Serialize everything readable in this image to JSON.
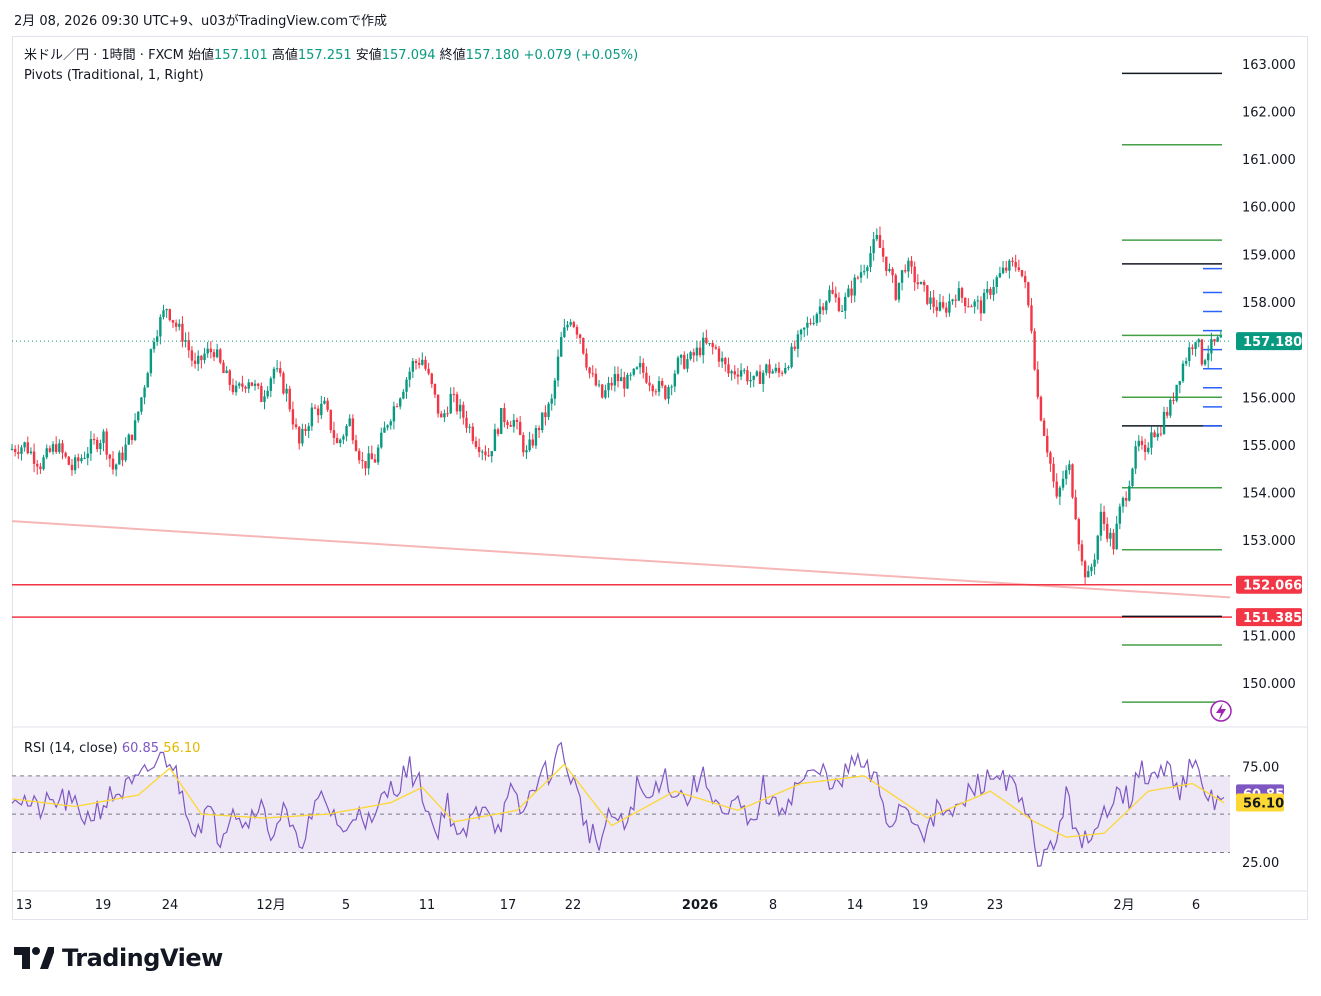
{
  "caption": "2月 08, 2026 09:30 UTC+9、u03がTradingView.comで作成",
  "legend": {
    "symbol": "米ドル／円 · 1時間 · FXCM",
    "open_label": "始値",
    "open": "157.101",
    "high_label": "高値",
    "high": "157.251",
    "low_label": "安値",
    "low": "157.094",
    "close_label": "終値",
    "close": "157.180",
    "change": "+0.079 (+0.05%)",
    "pivots": "Pivots (Traditional, 1, Right)"
  },
  "rsi_legend": {
    "label": "RSI (14, close)",
    "rsi_value": "60.85",
    "ma_value": "56.10"
  },
  "brand": {
    "name": "TradingView"
  },
  "colors": {
    "up": "#089981",
    "down": "#f23645",
    "pivot_green": "#43a047",
    "pivot_black": "#131722",
    "pivot_blue": "#2962ff",
    "hline_red": "#f23645",
    "trend_pink": "#f7b6b6",
    "rsi_line": "#7e57c2",
    "rsi_ma": "#fdd835",
    "rsi_band": "#ede7f6",
    "price_tag": "#089981"
  },
  "chart_data": {
    "type": "candlestick",
    "title": "米ドル／円 · 1時間 · FXCM",
    "y_axis": {
      "ticks": [
        "163.000",
        "162.000",
        "161.000",
        "160.000",
        "159.000",
        "158.000",
        "156.000",
        "155.000",
        "154.000",
        "153.000",
        "151.000",
        "150.000"
      ],
      "ylim": [
        149.1,
        163.5
      ]
    },
    "x_axis": {
      "ticks": [
        "13",
        "19",
        "24",
        "12月",
        "5",
        "11",
        "17",
        "22",
        "2026",
        "8",
        "14",
        "19",
        "23",
        "2月",
        "6"
      ]
    },
    "ohlc_path": [
      [
        0,
        154.9
      ],
      [
        5,
        155.0
      ],
      [
        10,
        154.6
      ],
      [
        15,
        155.0
      ],
      [
        20,
        154.5
      ],
      [
        25,
        154.9
      ],
      [
        30,
        155.2
      ],
      [
        33,
        154.5
      ],
      [
        36,
        154.8
      ],
      [
        40,
        155.4
      ],
      [
        43,
        156.3
      ],
      [
        46,
        157.3
      ],
      [
        50,
        157.9
      ],
      [
        53,
        157.5
      ],
      [
        56,
        157.2
      ],
      [
        59,
        156.6
      ],
      [
        62,
        156.9
      ],
      [
        65,
        157.0
      ],
      [
        68,
        156.5
      ],
      [
        72,
        156.1
      ],
      [
        76,
        156.4
      ],
      [
        80,
        156.0
      ],
      [
        84,
        156.6
      ],
      [
        88,
        156.1
      ],
      [
        92,
        155.0
      ],
      [
        96,
        155.7
      ],
      [
        100,
        155.8
      ],
      [
        104,
        155.0
      ],
      [
        108,
        155.5
      ],
      [
        112,
        154.6
      ],
      [
        116,
        154.7
      ],
      [
        120,
        155.5
      ],
      [
        124,
        156.1
      ],
      [
        128,
        156.7
      ],
      [
        131,
        156.8
      ],
      [
        134,
        156.2
      ],
      [
        137,
        155.5
      ],
      [
        140,
        156.0
      ],
      [
        144,
        155.6
      ],
      [
        148,
        155.1
      ],
      [
        152,
        154.8
      ],
      [
        156,
        155.6
      ],
      [
        160,
        155.5
      ],
      [
        164,
        154.8
      ],
      [
        168,
        155.4
      ],
      [
        172,
        155.9
      ],
      [
        175,
        157.2
      ],
      [
        178,
        157.7
      ],
      [
        181,
        157.3
      ],
      [
        184,
        156.5
      ],
      [
        188,
        156.0
      ],
      [
        192,
        156.4
      ],
      [
        196,
        156.3
      ],
      [
        200,
        156.6
      ],
      [
        204,
        156.3
      ],
      [
        208,
        156.1
      ],
      [
        212,
        156.7
      ],
      [
        216,
        156.8
      ],
      [
        220,
        157.1
      ],
      [
        224,
        157.0
      ],
      [
        228,
        156.5
      ],
      [
        232,
        156.6
      ],
      [
        236,
        156.3
      ],
      [
        240,
        156.6
      ],
      [
        244,
        156.5
      ],
      [
        248,
        156.9
      ],
      [
        252,
        157.4
      ],
      [
        256,
        157.8
      ],
      [
        260,
        158.2
      ],
      [
        264,
        157.9
      ],
      [
        268,
        158.4
      ],
      [
        272,
        158.9
      ],
      [
        275,
        159.3
      ],
      [
        278,
        158.8
      ],
      [
        281,
        158.2
      ],
      [
        284,
        158.8
      ],
      [
        288,
        158.4
      ],
      [
        292,
        158.0
      ],
      [
        296,
        157.8
      ],
      [
        300,
        158.2
      ],
      [
        304,
        158.0
      ],
      [
        308,
        157.9
      ],
      [
        312,
        158.4
      ],
      [
        316,
        158.7
      ],
      [
        320,
        158.8
      ],
      [
        322,
        158.3
      ],
      [
        324,
        157.5
      ],
      [
        326,
        156.0
      ],
      [
        328,
        155.3
      ],
      [
        330,
        154.6
      ],
      [
        332,
        153.8
      ],
      [
        334,
        154.3
      ],
      [
        336,
        154.5
      ],
      [
        338,
        153.6
      ],
      [
        340,
        152.5
      ],
      [
        342,
        152.2
      ],
      [
        344,
        152.7
      ],
      [
        346,
        153.5
      ],
      [
        348,
        153.2
      ],
      [
        350,
        152.9
      ],
      [
        352,
        153.6
      ],
      [
        354,
        154.0
      ],
      [
        356,
        154.6
      ],
      [
        358,
        155.0
      ],
      [
        360,
        154.7
      ],
      [
        362,
        155.4
      ],
      [
        364,
        155.2
      ],
      [
        366,
        155.6
      ],
      [
        368,
        155.8
      ],
      [
        370,
        156.3
      ],
      [
        372,
        156.7
      ],
      [
        374,
        157.0
      ],
      [
        376,
        157.3
      ],
      [
        378,
        156.8
      ],
      [
        380,
        157.0
      ],
      [
        382,
        157.1
      ],
      [
        384,
        157.2
      ]
    ],
    "pivots": {
      "levels": [
        {
          "value": 162.8,
          "color": "black"
        },
        {
          "value": 161.3,
          "color": "green"
        },
        {
          "value": 159.3,
          "color": "green"
        },
        {
          "value": 158.8,
          "color": "black"
        },
        {
          "value": 157.3,
          "color": "green"
        },
        {
          "value": 156.0,
          "color": "green"
        },
        {
          "value": 155.4,
          "color": "black"
        },
        {
          "value": 154.1,
          "color": "green"
        },
        {
          "value": 152.8,
          "color": "green"
        },
        {
          "value": 151.4,
          "color": "black"
        },
        {
          "value": 150.8,
          "color": "green"
        },
        {
          "value": 149.6,
          "color": "green"
        }
      ],
      "blue_levels": [
        158.7,
        158.2,
        157.8,
        157.4,
        157.0,
        156.6,
        156.2,
        155.8,
        155.4
      ]
    },
    "horizontal_lines": [
      {
        "value": 152.066,
        "label": "152.066"
      },
      {
        "value": 151.385,
        "label": "151.385"
      }
    ],
    "trend_line": {
      "from": 153.4,
      "to": 151.8
    },
    "last_price": {
      "value": 157.18,
      "label": "157.180"
    },
    "rsi": {
      "levels": {
        "upper": 70,
        "middle": 50,
        "lower": 30
      },
      "ticks": [
        "75.00",
        "25.00"
      ],
      "ylim": [
        13,
        95
      ],
      "path": [
        [
          0,
          62
        ],
        [
          8,
          52
        ],
        [
          16,
          58
        ],
        [
          24,
          48
        ],
        [
          32,
          60
        ],
        [
          40,
          66
        ],
        [
          46,
          78
        ],
        [
          50,
          80
        ],
        [
          54,
          60
        ],
        [
          58,
          42
        ],
        [
          62,
          52
        ],
        [
          66,
          38
        ],
        [
          70,
          56
        ],
        [
          74,
          44
        ],
        [
          78,
          58
        ],
        [
          82,
          40
        ],
        [
          86,
          52
        ],
        [
          90,
          34
        ],
        [
          94,
          44
        ],
        [
          98,
          58
        ],
        [
          102,
          50
        ],
        [
          106,
          38
        ],
        [
          110,
          56
        ],
        [
          114,
          42
        ],
        [
          118,
          60
        ],
        [
          122,
          66
        ],
        [
          126,
          74
        ],
        [
          130,
          62
        ],
        [
          134,
          40
        ],
        [
          138,
          56
        ],
        [
          142,
          34
        ],
        [
          146,
          48
        ],
        [
          150,
          58
        ],
        [
          154,
          42
        ],
        [
          158,
          60
        ],
        [
          162,
          50
        ],
        [
          166,
          68
        ],
        [
          170,
          72
        ],
        [
          174,
          84
        ],
        [
          178,
          66
        ],
        [
          182,
          44
        ],
        [
          186,
          34
        ],
        [
          190,
          50
        ],
        [
          194,
          42
        ],
        [
          198,
          64
        ],
        [
          202,
          56
        ],
        [
          206,
          72
        ],
        [
          210,
          62
        ],
        [
          214,
          58
        ],
        [
          218,
          70
        ],
        [
          222,
          62
        ],
        [
          226,
          46
        ],
        [
          230,
          56
        ],
        [
          234,
          42
        ],
        [
          238,
          64
        ],
        [
          242,
          52
        ],
        [
          246,
          58
        ],
        [
          250,
          68
        ],
        [
          254,
          70
        ],
        [
          258,
          72
        ],
        [
          262,
          62
        ],
        [
          266,
          78
        ],
        [
          270,
          74
        ],
        [
          274,
          66
        ],
        [
          278,
          44
        ],
        [
          282,
          56
        ],
        [
          286,
          48
        ],
        [
          290,
          40
        ],
        [
          294,
          54
        ],
        [
          298,
          48
        ],
        [
          302,
          58
        ],
        [
          306,
          66
        ],
        [
          310,
          68
        ],
        [
          314,
          72
        ],
        [
          318,
          60
        ],
        [
          322,
          46
        ],
        [
          326,
          24
        ],
        [
          330,
          34
        ],
        [
          334,
          58
        ],
        [
          338,
          40
        ],
        [
          342,
          32
        ],
        [
          346,
          50
        ],
        [
          350,
          66
        ],
        [
          354,
          58
        ],
        [
          358,
          72
        ],
        [
          362,
          68
        ],
        [
          366,
          74
        ],
        [
          370,
          64
        ],
        [
          374,
          76
        ],
        [
          378,
          60
        ],
        [
          382,
          56
        ],
        [
          384,
          61
        ]
      ],
      "ma_path": [
        [
          0,
          58
        ],
        [
          20,
          54
        ],
        [
          40,
          60
        ],
        [
          50,
          74
        ],
        [
          60,
          50
        ],
        [
          80,
          48
        ],
        [
          100,
          50
        ],
        [
          120,
          56
        ],
        [
          130,
          64
        ],
        [
          140,
          46
        ],
        [
          160,
          52
        ],
        [
          175,
          76
        ],
        [
          190,
          44
        ],
        [
          210,
          62
        ],
        [
          230,
          52
        ],
        [
          250,
          66
        ],
        [
          270,
          70
        ],
        [
          290,
          48
        ],
        [
          310,
          62
        ],
        [
          324,
          46
        ],
        [
          334,
          38
        ],
        [
          346,
          40
        ],
        [
          360,
          62
        ],
        [
          374,
          66
        ],
        [
          384,
          56
        ]
      ]
    }
  }
}
